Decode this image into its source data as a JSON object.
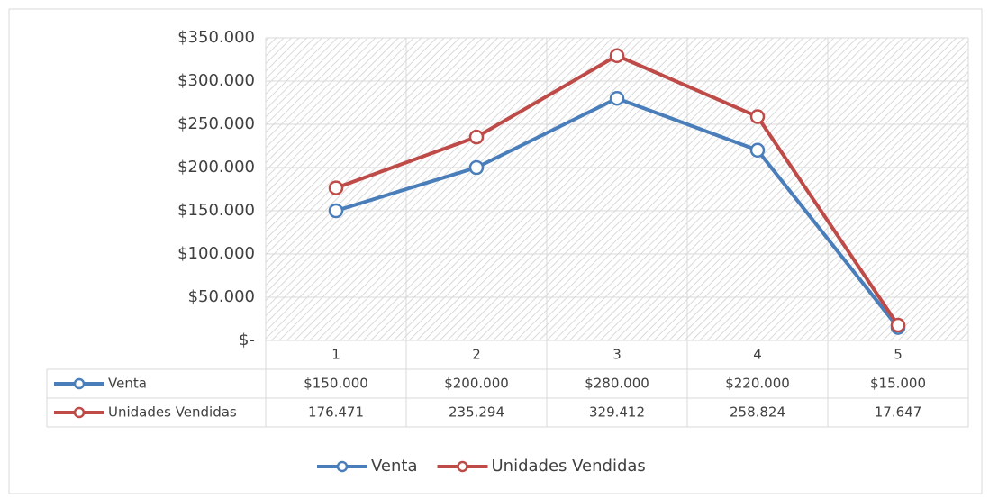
{
  "chart_data": {
    "type": "line",
    "categories": [
      "1",
      "2",
      "3",
      "4",
      "5"
    ],
    "series": [
      {
        "name": "Venta",
        "color": "#4a7ebb",
        "values": [
          150000,
          200000,
          280000,
          220000,
          15000
        ],
        "value_labels": [
          "$150.000",
          "$200.000",
          "$280.000",
          "$220.000",
          "$15.000"
        ]
      },
      {
        "name": "Unidades Vendidas",
        "color": "#be4b48",
        "values": [
          176471,
          235294,
          329412,
          258824,
          17647
        ],
        "value_labels": [
          "176.471",
          "235.294",
          "329.412",
          "258.824",
          "17.647"
        ]
      }
    ],
    "ylim": [
      0,
      350000
    ],
    "yticks": [
      {
        "value": 0,
        "label": "$-"
      },
      {
        "value": 50000,
        "label": "$50.000"
      },
      {
        "value": 100000,
        "label": "$100.000"
      },
      {
        "value": 150000,
        "label": "$150.000"
      },
      {
        "value": 200000,
        "label": "$200.000"
      },
      {
        "value": 250000,
        "label": "$250.000"
      },
      {
        "value": 300000,
        "label": "$300.000"
      },
      {
        "value": 350000,
        "label": "$350.000"
      }
    ],
    "grid": true,
    "legend": "bottom"
  }
}
